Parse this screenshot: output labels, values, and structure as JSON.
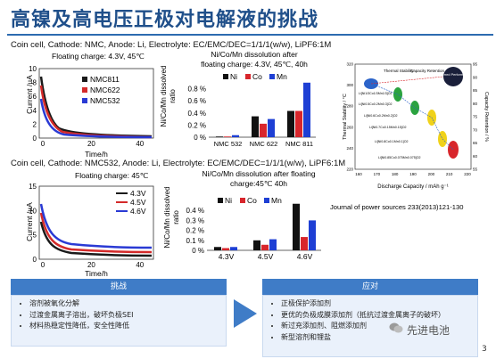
{
  "title": "高镍及高电压正极对电解液的挑战",
  "top_panel": {
    "cell_info": "Coin cell, Cathode: NMC, Anode: Li, Electrolyte: EC/EMC/DEC=1/1/1(w/w), LiPF6:1M",
    "current_chart": {
      "condition": "Floating charge: 4.3V, 45℃",
      "ylabel": "Current /µA",
      "xlabel": "Time/h",
      "y_ticks": [
        "0",
        "2",
        "4",
        "6",
        "8",
        "10"
      ],
      "x_ticks": [
        "0",
        "20",
        "40"
      ],
      "legend": [
        "NMC811",
        "NMC622",
        "NMC532"
      ]
    },
    "dissolution_chart": {
      "title_line1": "Ni/Co/Mn dissolution after",
      "title_line2": "floating charge: 4.3V, 45℃, 40h",
      "ylabel_line1": "Ni/Co/Mn dissolved",
      "ylabel_line2": "ratio"
    }
  },
  "bottom_panel": {
    "cell_info": "Coin cell, Cathode: NMC532, Anode: Li, Electrolyte: EC/EMC/DEC=1/1/1(w/w), LiPF6:1M",
    "current_chart": {
      "condition": "Floating charge: 45℃",
      "ylabel": "Current /µA",
      "xlabel": "Time/h",
      "y_ticks": [
        "0",
        "5",
        "10",
        "15"
      ],
      "x_ticks": [
        "0",
        "20",
        "40"
      ],
      "legend": [
        "4.3V",
        "4.5V",
        "4.6V"
      ]
    },
    "dissolution_chart": {
      "title_line1": "Ni/Co/Mn dissolution after floating",
      "title_line2": "charge:45℃ 40h",
      "ylabel_line1": "Ni/Co/Mn dissolved",
      "ylabel_line2": "ratio"
    },
    "citation": "Journal of power sources 233(2013)121-130"
  },
  "chart_data": [
    {
      "type": "bar",
      "categories": [
        "NMC 532",
        "NMC 622",
        "NMC 811"
      ],
      "series": [
        {
          "name": "Ni",
          "values": [
            0.01,
            0.31,
            0.39
          ]
        },
        {
          "name": "Co",
          "values": [
            0.01,
            0.2,
            0.39
          ]
        },
        {
          "name": "Mn",
          "values": [
            0.03,
            0.27,
            0.81
          ]
        }
      ],
      "y_ticks": [
        "0 %",
        "0.2 %",
        "0.4 %",
        "0.6 %",
        "0.8 %"
      ],
      "ylim": [
        0,
        0.9
      ],
      "legend_position": "top"
    },
    {
      "type": "bar",
      "categories": [
        "4.3V",
        "4.5V",
        "4.6V"
      ],
      "series": [
        {
          "name": "Ni",
          "values": [
            0.03,
            0.09,
            0.42
          ]
        },
        {
          "name": "Co",
          "values": [
            0.02,
            0.05,
            0.12
          ]
        },
        {
          "name": "Mn",
          "values": [
            0.03,
            0.1,
            0.27
          ]
        }
      ],
      "y_ticks": [
        "0 %",
        "0.1 %",
        "0.2 %",
        "0.3 %",
        "0.4 %"
      ],
      "ylim": [
        0,
        0.45
      ],
      "legend_position": "top"
    }
  ],
  "figure_right": {
    "ylabel_left": "Thermal Stability / °C",
    "ylabel_right": "Capacity Retention / %",
    "xlabel": "Discharge Capacity / mAh g⁻¹",
    "y_left_ticks": [
      "220",
      "240",
      "260",
      "280",
      "300",
      "320"
    ],
    "y_right_ticks": [
      "55",
      "60",
      "65",
      "70",
      "75",
      "80",
      "85",
      "90",
      "95"
    ],
    "x_ticks": [
      "160",
      "170",
      "180",
      "190",
      "200",
      "210",
      "220"
    ],
    "legend_thermal": "Thermal Stability",
    "legend_capacity": "Capacity Retention",
    "preferred_label": "Preferred Performance",
    "compositions": [
      "Li[Ni1/3Co1/3Mn1/3]O2",
      "Li[Ni0.5Co0.2Mn0.3]O2",
      "Li[Ni0.6Co0.2Mn0.2]O2",
      "Li[Ni0.7Co0.15Mn0.15]O2",
      "Li[Ni0.8Co0.1Mn0.1]O2",
      "Li[Ni0.85Co0.075Mn0.075]O2"
    ],
    "colors": {
      "blue": "#2b63c9",
      "green": "#2aa33f",
      "yellow": "#f0d21a",
      "red": "#d8262c"
    }
  },
  "challenges": {
    "header": "挑战",
    "items": [
      "溶剂被氧化分解",
      "过渡金属离子溶出，破坏负极SEI",
      "材料热稳定性降低，安全性降低"
    ]
  },
  "solutions": {
    "header": "应对",
    "items": [
      "正极保护添加剂",
      "更优的负极成膜添加剂（抵抗过渡金属离子的破坏）",
      "新过充添加剂、阻燃添加剂",
      "新型溶剂和锂盐"
    ]
  },
  "watermark": "先进电池",
  "page_number": "3",
  "colors": {
    "title": "#1f4f8a",
    "accent": "#3f7cc7",
    "box_bg": "#eaf1fb"
  }
}
